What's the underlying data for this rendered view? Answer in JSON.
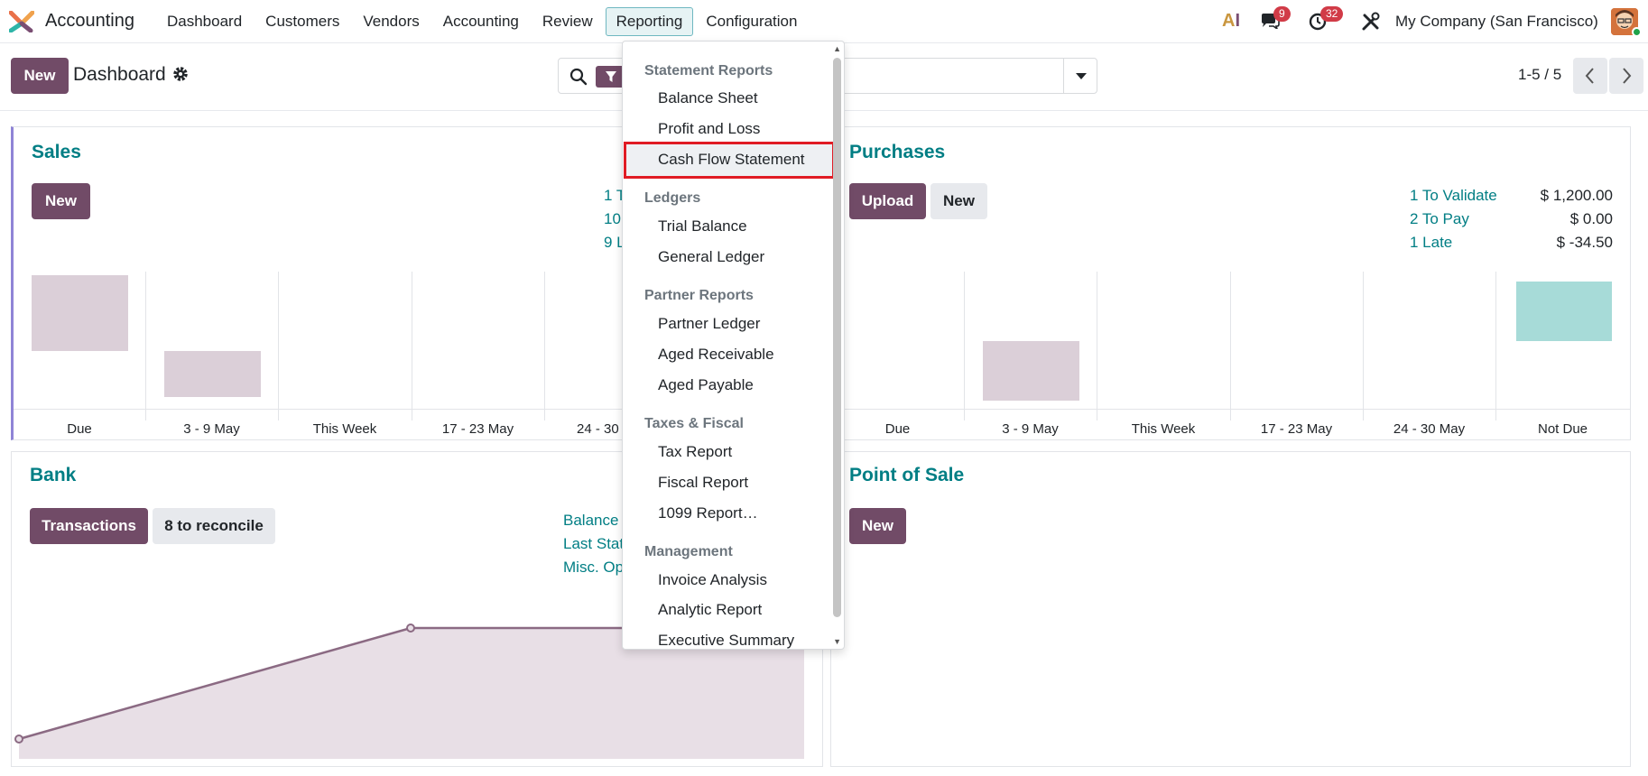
{
  "topbar": {
    "app_name": "Accounting",
    "menu": [
      "Dashboard",
      "Customers",
      "Vendors",
      "Accounting",
      "Review",
      "Reporting",
      "Configuration"
    ],
    "chat_count": "9",
    "activity_count": "32",
    "company": "My Company (San Francisco)"
  },
  "control": {
    "new_label": "New",
    "title": "Dashboard",
    "pager": "1-5 / 5"
  },
  "sales": {
    "title": "Sales",
    "new_label": "New",
    "stats": [
      "1 T",
      "10",
      "9 L"
    ],
    "graph_labels": [
      "Due",
      "3 - 9 May",
      "This Week",
      "17 - 23 May",
      "24 - 30"
    ]
  },
  "purchases": {
    "title": "Purchases",
    "upload_label": "Upload",
    "new_label": "New",
    "stats": [
      {
        "label": "1 To Validate",
        "value": "$ 1,200.00"
      },
      {
        "label": "2 To Pay",
        "value": "$ 0.00"
      },
      {
        "label": "1 Late",
        "value": "$ -34.50"
      }
    ],
    "graph_labels": [
      "Due",
      "3 - 9 May",
      "This Week",
      "17 - 23 May",
      "24 - 30 May",
      "Not Due"
    ]
  },
  "bank": {
    "title": "Bank",
    "transactions_label": "Transactions",
    "reconcile_label": "8 to reconcile",
    "stats": [
      "Balance",
      "Last Stat",
      "Misc. Op"
    ]
  },
  "pos": {
    "title": "Point of Sale",
    "new_label": "New"
  },
  "reporting_menu": {
    "sections": [
      {
        "header": "Statement Reports",
        "items": [
          "Balance Sheet",
          "Profit and Loss",
          "Cash Flow Statement"
        ]
      },
      {
        "header": "Ledgers",
        "items": [
          "Trial Balance",
          "General Ledger"
        ]
      },
      {
        "header": "Partner Reports",
        "items": [
          "Partner Ledger",
          "Aged Receivable",
          "Aged Payable"
        ]
      },
      {
        "header": "Taxes & Fiscal",
        "items": [
          "Tax Report",
          "Fiscal Report",
          "1099 Report…"
        ]
      },
      {
        "header": "Management",
        "items": [
          "Invoice Analysis",
          "Analytic Report",
          "Executive Summary"
        ]
      }
    ]
  },
  "colors": {
    "primary": "#714b67",
    "link": "#017e84",
    "bar_muted": "#dbcfd8",
    "bar_teal": "#a7dbd8",
    "highlight": "#e01b24"
  }
}
